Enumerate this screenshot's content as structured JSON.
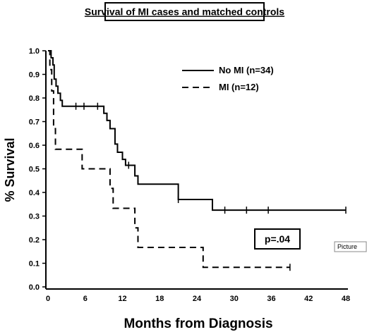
{
  "chart_data": {
    "type": "line",
    "title": "Survival of MI cases and matched controls",
    "xlabel": "Months from Diagnosis",
    "ylabel": "% Survival",
    "xlim": [
      0,
      48
    ],
    "ylim": [
      0,
      1.0
    ],
    "x_ticks": [
      "0",
      "6",
      "12",
      "18",
      "24",
      "30",
      "36",
      "42",
      "48"
    ],
    "y_ticks": [
      "0.0",
      "0.1",
      "0.2",
      "0.3",
      "0.4",
      "0.5",
      "0.6",
      "0.7",
      "0.8",
      "0.9",
      "1.0"
    ],
    "grid": false,
    "legend_position": "top-right",
    "series": [
      {
        "name": "No MI (n=34)",
        "style": "solid",
        "steps": [
          [
            0,
            1.0
          ],
          [
            0.5,
            0.97
          ],
          [
            0.8,
            0.94
          ],
          [
            1.0,
            0.88
          ],
          [
            1.3,
            0.85
          ],
          [
            1.6,
            0.82
          ],
          [
            2.0,
            0.79
          ],
          [
            2.3,
            0.765
          ],
          [
            9.0,
            0.735
          ],
          [
            9.5,
            0.705
          ],
          [
            10.0,
            0.67
          ],
          [
            10.8,
            0.605
          ],
          [
            11.2,
            0.57
          ],
          [
            12.0,
            0.54
          ],
          [
            12.5,
            0.515
          ],
          [
            14.0,
            0.47
          ],
          [
            14.5,
            0.435
          ],
          [
            21.0,
            0.37
          ],
          [
            26.5,
            0.325
          ],
          [
            48,
            0.325
          ]
        ],
        "censored": [
          [
            4.5,
            0.765
          ],
          [
            5.8,
            0.765
          ],
          [
            8.0,
            0.765
          ],
          [
            13.0,
            0.515
          ],
          [
            21.0,
            0.37
          ],
          [
            28.5,
            0.325
          ],
          [
            32.0,
            0.325
          ],
          [
            35.5,
            0.325
          ],
          [
            48,
            0.325
          ]
        ]
      },
      {
        "name": "MI (n=12)",
        "style": "dashed",
        "steps": [
          [
            0,
            1.0
          ],
          [
            0.3,
            0.92
          ],
          [
            0.6,
            0.83
          ],
          [
            0.9,
            0.67
          ],
          [
            1.2,
            0.583
          ],
          [
            5.5,
            0.5
          ],
          [
            10.0,
            0.417
          ],
          [
            10.5,
            0.333
          ],
          [
            14.0,
            0.25
          ],
          [
            14.5,
            0.167
          ],
          [
            25.0,
            0.083
          ],
          [
            39.0,
            0.083
          ]
        ],
        "censored": [
          [
            39.0,
            0.083
          ]
        ]
      }
    ],
    "annotations": [
      "p=.04"
    ]
  },
  "picture_label": "Picture",
  "colors": {
    "line": "#000000",
    "background": "#ffffff"
  }
}
